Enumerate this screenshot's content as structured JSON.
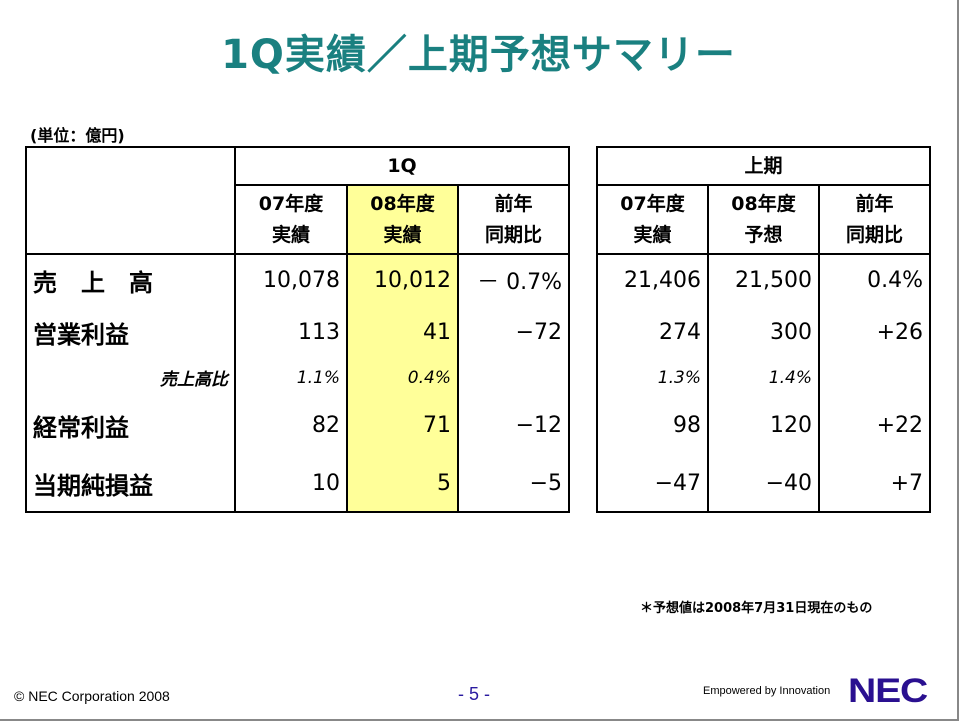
{
  "title": "1Q実績／上期予想サマリー",
  "unit": "(単位：億円)",
  "q1": {
    "header": "1Q",
    "cols": [
      [
        "07年度",
        "実績"
      ],
      [
        "08年度",
        "実績"
      ],
      [
        "前年",
        "同期比"
      ]
    ]
  },
  "h1": {
    "header": "上期",
    "cols": [
      [
        "07年度",
        "実績"
      ],
      [
        "08年度",
        "予想"
      ],
      [
        "前年",
        "同期比"
      ]
    ]
  },
  "rows": [
    {
      "label": "売　上　高",
      "q1": [
        "10,078",
        "10,012",
        "－ 0.7%"
      ],
      "h1": [
        "21,406",
        "21,500",
        "0.4%"
      ]
    },
    {
      "label": "営業利益",
      "q1": [
        "113",
        "41",
        "−72"
      ],
      "h1": [
        "274",
        "300",
        "+26"
      ]
    },
    {
      "label": "売上高比",
      "q1": [
        "1.1%",
        "0.4%",
        ""
      ],
      "h1": [
        "1.3%",
        "1.4%",
        ""
      ]
    },
    {
      "label": "経常利益",
      "q1": [
        "82",
        "71",
        "−12"
      ],
      "h1": [
        "98",
        "120",
        "+22"
      ]
    },
    {
      "label": "当期純損益",
      "q1": [
        "10",
        "5",
        "−5"
      ],
      "h1": [
        "−47",
        "−40",
        "+7"
      ]
    }
  ],
  "note": "＊予想値は2008年7月31日現在のもの",
  "footer": {
    "copyright": "© NEC Corporation 2008",
    "page": "- 5 -",
    "tagline": "Empowered by Innovation",
    "logo": "NEC"
  },
  "colors": {
    "title": "#1a8080",
    "highlight": "#ffff99",
    "logo": "#2a1090"
  }
}
